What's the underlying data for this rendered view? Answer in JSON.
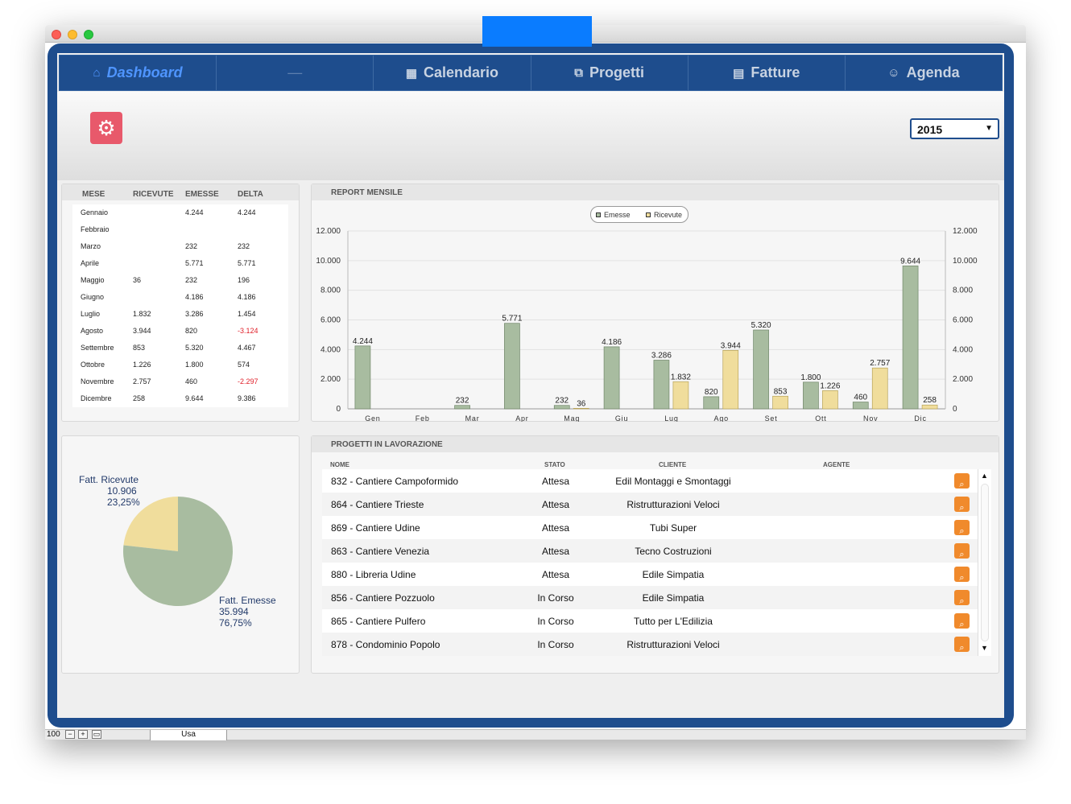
{
  "nav": {
    "items": [
      {
        "label": "Dashboard",
        "icon": "home-icon"
      },
      {
        "label": "—",
        "icon": ""
      },
      {
        "label": "Calendario",
        "icon": "calendar-icon"
      },
      {
        "label": "Progetti",
        "icon": "copy-icon"
      },
      {
        "label": "Fatture",
        "icon": "document-icon"
      },
      {
        "label": "Agenda",
        "icon": "people-icon"
      }
    ]
  },
  "toolbar": {
    "year": "2015"
  },
  "months_table": {
    "headers": [
      "MESE",
      "RICEVUTE",
      "EMESSE",
      "DELTA"
    ],
    "rows": [
      [
        "Gennaio",
        "",
        "4.244",
        "4.244"
      ],
      [
        "Febbraio",
        "",
        "",
        ""
      ],
      [
        "Marzo",
        "",
        "232",
        "232"
      ],
      [
        "Aprile",
        "",
        "5.771",
        "5.771"
      ],
      [
        "Maggio",
        "36",
        "232",
        "196"
      ],
      [
        "Giugno",
        "",
        "4.186",
        "4.186"
      ],
      [
        "Luglio",
        "1.832",
        "3.286",
        "1.454"
      ],
      [
        "Agosto",
        "3.944",
        "820",
        "-3.124"
      ],
      [
        "Settembre",
        "853",
        "5.320",
        "4.467"
      ],
      [
        "Ottobre",
        "1.226",
        "1.800",
        "574"
      ],
      [
        "Novembre",
        "2.757",
        "460",
        "-2.297"
      ],
      [
        "Dicembre",
        "258",
        "9.644",
        "9.386"
      ]
    ]
  },
  "report": {
    "title": "REPORT MENSILE",
    "legend": [
      "Emesse",
      "Ricevute"
    ]
  },
  "chart_data": [
    {
      "type": "bar",
      "title": "REPORT MENSILE",
      "categories": [
        "Gen",
        "Feb",
        "Mar",
        "Apr",
        "Mag",
        "Giu",
        "Lug",
        "Ago",
        "Set",
        "Ott",
        "Nov",
        "Dic"
      ],
      "series": [
        {
          "name": "Emesse",
          "values": [
            4244,
            0,
            232,
            5771,
            232,
            4186,
            3286,
            820,
            5320,
            1800,
            460,
            9644
          ],
          "color": "#a8bca0"
        },
        {
          "name": "Ricevute",
          "values": [
            0,
            0,
            0,
            0,
            36,
            0,
            1832,
            3944,
            853,
            1226,
            2757,
            258
          ],
          "color": "#f0dd9c"
        }
      ],
      "data_labels_emesse": [
        "4.244",
        "",
        "232",
        "5.771",
        "232",
        "4.186",
        "3.286",
        "820",
        "5.320",
        "1.800",
        "460",
        "9.644"
      ],
      "data_labels_ricevute": [
        "",
        "",
        "",
        "",
        "36",
        "",
        "1.832",
        "3.944",
        "853",
        "1.226",
        "2.757",
        "258"
      ],
      "yticks": [
        "0",
        "2.000",
        "4.000",
        "6.000",
        "8.000",
        "10.000",
        "12.000"
      ],
      "ylim": [
        0,
        12000
      ],
      "grid": true,
      "legend_position": "top-center"
    },
    {
      "type": "pie",
      "slices": [
        {
          "name": "Fatt. Ricevute",
          "value": 10906,
          "value_label": "10.906",
          "percent": "23,25%",
          "color": "#f0dd9c"
        },
        {
          "name": "Fatt. Emesse",
          "value": 35994,
          "value_label": "35.994",
          "percent": "76,75%",
          "color": "#a8bca0"
        }
      ]
    }
  ],
  "projects": {
    "title": "PROGETTI  IN  LAVORAZIONE",
    "headers": [
      "NOME",
      "STATO",
      "CLIENTE",
      "AGENTE"
    ],
    "rows": [
      {
        "nome": "832 - Cantiere Campoformido",
        "stato": "Attesa",
        "cliente": "Edil Montaggi e Smontaggi",
        "agente": ""
      },
      {
        "nome": "864 - Cantiere Trieste",
        "stato": "Attesa",
        "cliente": "Ristrutturazioni Veloci",
        "agente": ""
      },
      {
        "nome": "869 - Cantiere Udine",
        "stato": "Attesa",
        "cliente": "Tubi Super",
        "agente": ""
      },
      {
        "nome": "863 - Cantiere Venezia",
        "stato": "Attesa",
        "cliente": "Tecno Costruzioni",
        "agente": ""
      },
      {
        "nome": "880 - Libreria Udine",
        "stato": "Attesa",
        "cliente": "Edile Simpatia",
        "agente": ""
      },
      {
        "nome": "856 - Cantiere Pozzuolo",
        "stato": "In Corso",
        "cliente": "Edile Simpatia",
        "agente": ""
      },
      {
        "nome": "865 - Cantiere Pulfero",
        "stato": "In Corso",
        "cliente": "Tutto per L'Edilizia",
        "agente": ""
      },
      {
        "nome": "878 - Condominio Popolo",
        "stato": "In Corso",
        "cliente": "Ristrutturazioni Veloci",
        "agente": ""
      }
    ]
  },
  "statusbar": {
    "zoom": "100",
    "mode": "Usa"
  },
  "colors": {
    "frame": "#1e4d8d",
    "active_nav": "#4f95ff",
    "gear_button": "#e8596b",
    "search_button": "#f08a2c",
    "negative": "#e0202a"
  }
}
